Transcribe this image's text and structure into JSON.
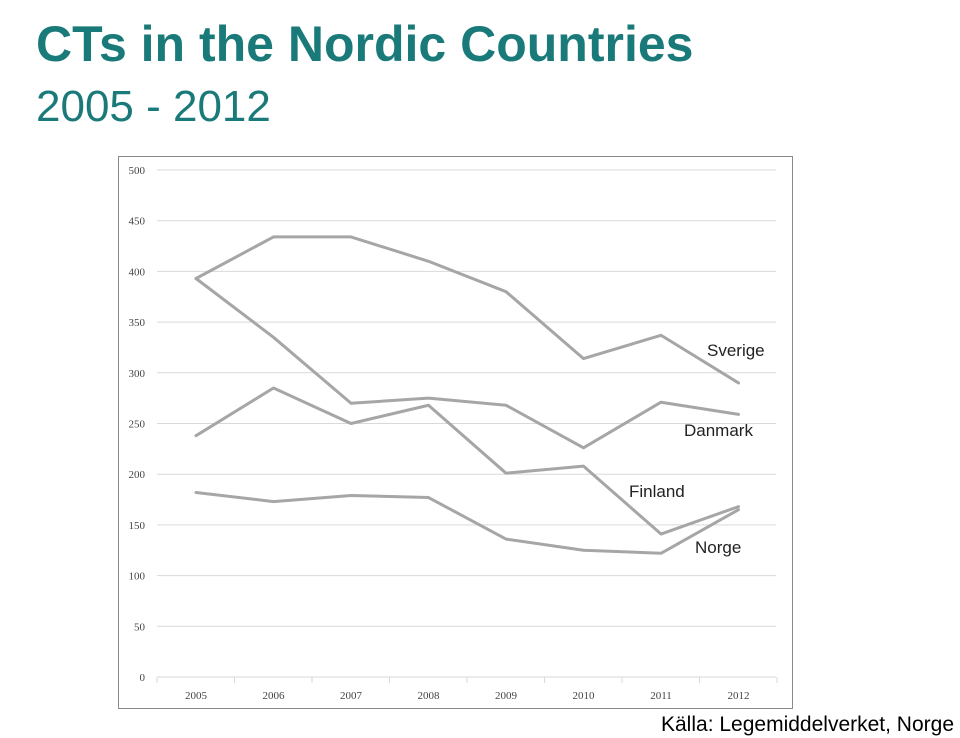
{
  "title": "CTs in the Nordic Countries",
  "subtitle": "2005 - 2012",
  "source": "Källa: Legemiddelverket, Norge",
  "colors": {
    "title": "#1a7a7a",
    "subtitle": "#1a7a7a",
    "line": "#a6a6a6",
    "grid": "#d9d9d9",
    "tick_text": "#444444",
    "label_text": "#222222"
  },
  "chart_data": {
    "type": "line",
    "title": "",
    "xlabel": "",
    "ylabel": "",
    "categories": [
      "2005",
      "2006",
      "2007",
      "2008",
      "2009",
      "2010",
      "2011",
      "2012"
    ],
    "ylim": [
      0,
      500
    ],
    "yticks": [
      "0",
      "50",
      "100",
      "150",
      "200",
      "250",
      "300",
      "350",
      "400",
      "450",
      "500"
    ],
    "grid": true,
    "legend": "none",
    "series": [
      {
        "name": "Sverige",
        "values": [
          393,
          434,
          434,
          410,
          380,
          314,
          337,
          290
        ]
      },
      {
        "name": "Danmark",
        "values": [
          393,
          335,
          270,
          275,
          268,
          226,
          271,
          259
        ]
      },
      {
        "name": "Finland",
        "values": [
          238,
          285,
          250,
          268,
          201,
          208,
          141,
          168
        ]
      },
      {
        "name": "Norge",
        "values": [
          182,
          173,
          179,
          177,
          136,
          125,
          122,
          165
        ]
      }
    ]
  }
}
